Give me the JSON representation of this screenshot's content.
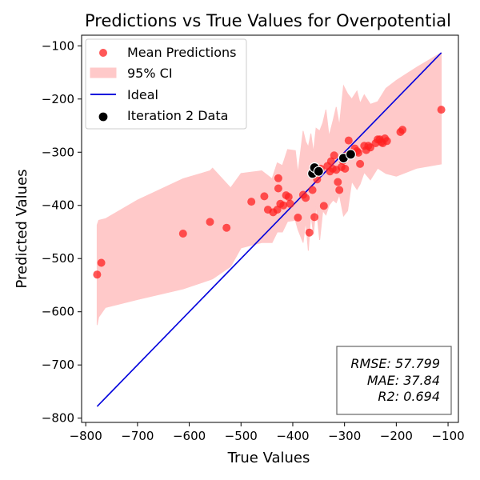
{
  "chart_data": {
    "type": "scatter",
    "title": "Predictions vs True Values for Overpotential",
    "xlabel": "True Values",
    "ylabel": "Predicted Values",
    "xlim": [
      -808,
      -80
    ],
    "ylim": [
      -808,
      -80
    ],
    "xticks": [
      -800,
      -700,
      -600,
      -500,
      -400,
      -300,
      -200,
      -100
    ],
    "yticks": [
      -100,
      -200,
      -300,
      -400,
      -500,
      -600,
      -700,
      -800
    ],
    "legend_position": "upper-left",
    "colors": {
      "mean": "#ff2020",
      "ci": "#ffc9c9",
      "ideal": "#0000dd",
      "iteration": "#000000"
    },
    "series": [
      {
        "name": "Mean Predictions",
        "kind": "scatter",
        "points": [
          [
            -778,
            -530
          ],
          [
            -770,
            -508
          ],
          [
            -612,
            -453
          ],
          [
            -560,
            -431
          ],
          [
            -528,
            -442
          ],
          [
            -480,
            -393
          ],
          [
            -455,
            -383
          ],
          [
            -448,
            -408
          ],
          [
            -438,
            -413
          ],
          [
            -430,
            -408
          ],
          [
            -428,
            -349
          ],
          [
            -428,
            -368
          ],
          [
            -424,
            -397
          ],
          [
            -418,
            -400
          ],
          [
            -413,
            -381
          ],
          [
            -408,
            -384
          ],
          [
            -405,
            -397
          ],
          [
            -390,
            -423
          ],
          [
            -380,
            -380
          ],
          [
            -375,
            -386
          ],
          [
            -368,
            -451
          ],
          [
            -362,
            -371
          ],
          [
            -358,
            -422
          ],
          [
            -353,
            -351
          ],
          [
            -346,
            -331
          ],
          [
            -340,
            -401
          ],
          [
            -333,
            -326
          ],
          [
            -328,
            -336
          ],
          [
            -326,
            -317
          ],
          [
            -323,
            -331
          ],
          [
            -320,
            -306
          ],
          [
            -316,
            -333
          ],
          [
            -313,
            -356
          ],
          [
            -310,
            -371
          ],
          [
            -306,
            -328
          ],
          [
            -303,
            -316
          ],
          [
            -299,
            -331
          ],
          [
            -296,
            -306
          ],
          [
            -292,
            -278
          ],
          [
            -287,
            -301
          ],
          [
            -280,
            -293
          ],
          [
            -276,
            -298
          ],
          [
            -273,
            -301
          ],
          [
            -270,
            -322
          ],
          [
            -262,
            -288
          ],
          [
            -258,
            -296
          ],
          [
            -254,
            -288
          ],
          [
            -250,
            -291
          ],
          [
            -240,
            -283
          ],
          [
            -236,
            -276
          ],
          [
            -232,
            -276
          ],
          [
            -229,
            -281
          ],
          [
            -226,
            -283
          ],
          [
            -222,
            -274
          ],
          [
            -218,
            -279
          ],
          [
            -192,
            -262
          ],
          [
            -188,
            -258
          ],
          [
            -113,
            -220
          ]
        ]
      },
      {
        "name": "95% CI",
        "kind": "band",
        "points": [
          [
            -778,
            -625,
            -437
          ],
          [
            -775,
            -610,
            -428
          ],
          [
            -762,
            -592,
            -425
          ],
          [
            -700,
            -577,
            -390
          ],
          [
            -612,
            -557,
            -350
          ],
          [
            -560,
            -540,
            -335
          ],
          [
            -555,
            -538,
            -330
          ],
          [
            -520,
            -515,
            -367
          ],
          [
            -500,
            -480,
            -340
          ],
          [
            -460,
            -470,
            -335
          ],
          [
            -440,
            -470,
            -350
          ],
          [
            -430,
            -450,
            -320
          ],
          [
            -420,
            -450,
            -325
          ],
          [
            -410,
            -430,
            -295
          ],
          [
            -395,
            -428,
            -297
          ],
          [
            -390,
            -445,
            -340
          ],
          [
            -380,
            -470,
            -260
          ],
          [
            -375,
            -430,
            -280
          ],
          [
            -370,
            -485,
            -290
          ],
          [
            -365,
            -415,
            -265
          ],
          [
            -360,
            -455,
            -300
          ],
          [
            -355,
            -400,
            -255
          ],
          [
            -348,
            -465,
            -260
          ],
          [
            -342,
            -410,
            -245
          ],
          [
            -336,
            -418,
            -220
          ],
          [
            -330,
            -400,
            -270
          ],
          [
            -322,
            -390,
            -240
          ],
          [
            -316,
            -395,
            -215
          ],
          [
            -310,
            -380,
            -250
          ],
          [
            -302,
            -420,
            -175
          ],
          [
            -294,
            -410,
            -190
          ],
          [
            -286,
            -355,
            -200
          ],
          [
            -276,
            -370,
            -185
          ],
          [
            -270,
            -360,
            -208
          ],
          [
            -262,
            -338,
            -192
          ],
          [
            -250,
            -352,
            -210
          ],
          [
            -236,
            -330,
            -205
          ],
          [
            -220,
            -340,
            -180
          ],
          [
            -200,
            -345,
            -165
          ],
          [
            -160,
            -330,
            -140
          ],
          [
            -113,
            -322,
            -113
          ]
        ]
      },
      {
        "name": "Ideal",
        "kind": "line",
        "points": [
          [
            -778,
            -778
          ],
          [
            -113,
            -113
          ]
        ]
      },
      {
        "name": "Iteration 2 Data",
        "kind": "scatter",
        "points": [
          [
            -362,
            -340
          ],
          [
            -358,
            -329
          ],
          [
            -350,
            -336
          ],
          [
            -302,
            -311
          ],
          [
            -288,
            -304
          ]
        ]
      }
    ],
    "stats_box": {
      "lines": [
        "RMSE: 57.799",
        "MAE: 37.84",
        "R2: 0.694"
      ]
    }
  }
}
